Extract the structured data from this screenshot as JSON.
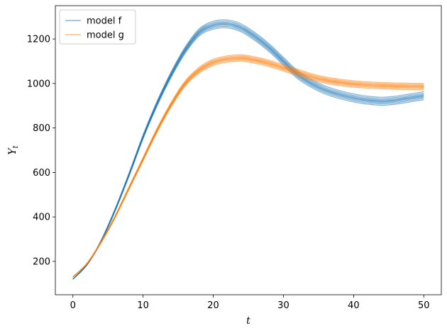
{
  "chart_data": {
    "type": "line",
    "title": "",
    "xlabel": "t",
    "ylabel": "Y",
    "ylabel_subscript": "t",
    "xlim": [
      -2.5,
      52.5
    ],
    "ylim": [
      50,
      1350
    ],
    "xticks": [
      0,
      10,
      20,
      30,
      40,
      50
    ],
    "yticks": [
      200,
      400,
      600,
      800,
      1000,
      1200
    ],
    "grid": false,
    "legend_position": "top-left",
    "series": [
      {
        "name": "model f",
        "color": "#1f77b4",
        "x": [
          0,
          2,
          4,
          6,
          8,
          10,
          12,
          14,
          16,
          18,
          20,
          22,
          24,
          26,
          28,
          30,
          32,
          34,
          36,
          38,
          40,
          42,
          44,
          46,
          48,
          50
        ],
        "y": [
          120,
          185,
          290,
          430,
          590,
          760,
          910,
          1040,
          1150,
          1230,
          1262,
          1268,
          1250,
          1210,
          1160,
          1100,
          1040,
          1000,
          970,
          950,
          935,
          925,
          920,
          925,
          935,
          945
        ]
      },
      {
        "name": "model g",
        "color": "#ff7f0e",
        "x": [
          0,
          2,
          4,
          6,
          8,
          10,
          12,
          14,
          16,
          18,
          20,
          22,
          24,
          26,
          28,
          30,
          32,
          34,
          36,
          38,
          40,
          42,
          44,
          46,
          48,
          50
        ],
        "y": [
          130,
          190,
          285,
          400,
          530,
          660,
          790,
          905,
          1000,
          1060,
          1095,
          1110,
          1115,
          1105,
          1090,
          1070,
          1050,
          1030,
          1015,
          1005,
          998,
          993,
          990,
          988,
          987,
          986
        ]
      }
    ]
  }
}
